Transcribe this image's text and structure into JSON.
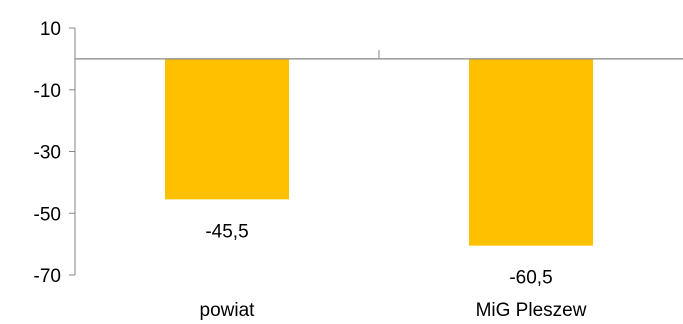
{
  "chart_data": {
    "type": "bar",
    "categories": [
      "powiat",
      "MiG Pleszew"
    ],
    "values": [
      -45.5,
      -60.5
    ],
    "data_labels": [
      "-45,5",
      "-60,5"
    ],
    "y_ticks": [
      10,
      -10,
      -30,
      -50,
      -70
    ],
    "y_tick_labels": [
      "10",
      "-10",
      "-30",
      "-50",
      "-70"
    ],
    "ylim": [
      -70,
      10
    ],
    "title": "",
    "xlabel": "",
    "ylabel": "",
    "grid": false,
    "legend": "none",
    "bar_color": "#FFC000",
    "axis_color": "#868686"
  }
}
